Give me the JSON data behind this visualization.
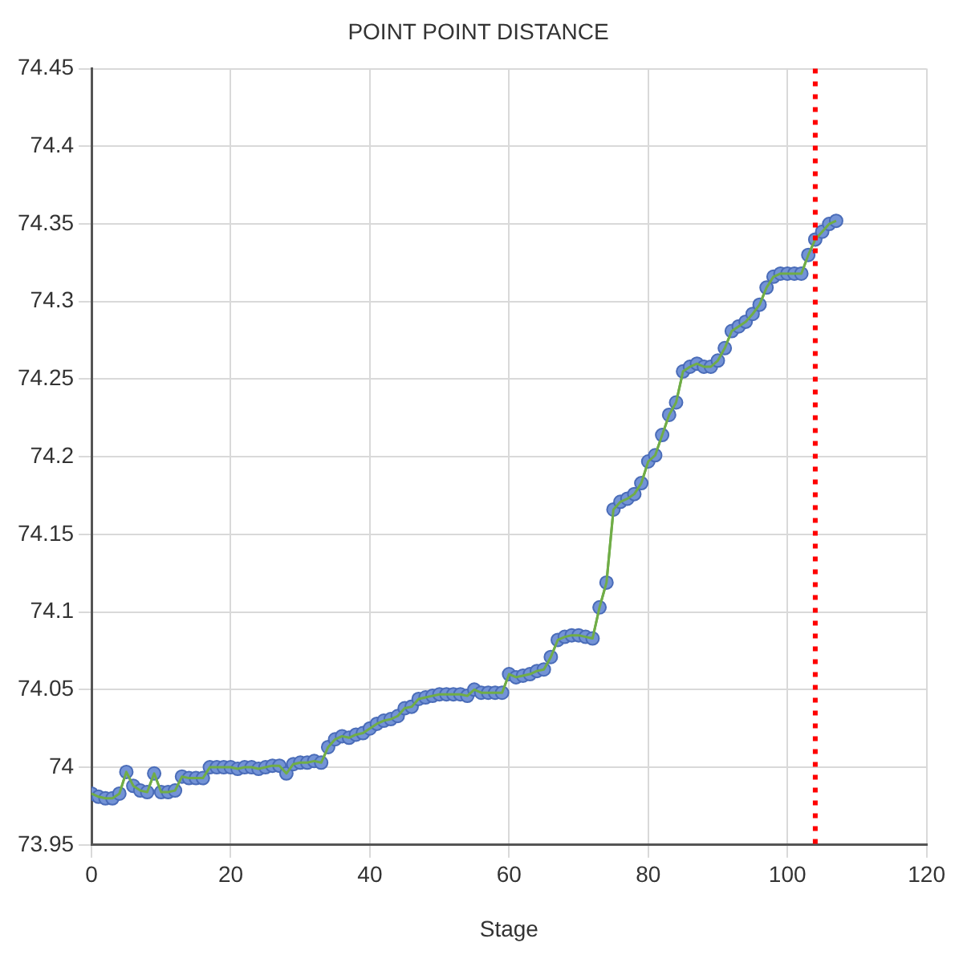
{
  "chart_data": {
    "type": "line",
    "title": "POINT POINT DISTANCE",
    "xlabel": "Stage",
    "x": [
      0,
      1,
      2,
      3,
      4,
      5,
      6,
      7,
      8,
      9,
      10,
      11,
      12,
      13,
      14,
      15,
      16,
      17,
      18,
      19,
      20,
      21,
      22,
      23,
      24,
      25,
      26,
      27,
      28,
      29,
      30,
      31,
      32,
      33,
      34,
      35,
      36,
      37,
      38,
      39,
      40,
      41,
      42,
      43,
      44,
      45,
      46,
      47,
      48,
      49,
      50,
      51,
      52,
      53,
      54,
      55,
      56,
      57,
      58,
      59,
      60,
      61,
      62,
      63,
      64,
      65,
      66,
      67,
      68,
      69,
      70,
      71,
      72,
      73,
      74,
      75,
      76,
      77,
      78,
      79,
      80,
      81,
      82,
      83,
      84,
      85,
      86,
      87,
      88,
      89,
      90,
      91,
      92,
      93,
      94,
      95,
      96,
      97,
      98,
      99,
      100,
      101,
      102,
      103,
      104,
      105,
      106,
      107
    ],
    "series": [
      {
        "color": "#70ad47",
        "values": [
          73.983,
          73.981,
          73.98,
          73.98,
          73.983,
          73.997,
          73.988,
          73.985,
          73.984,
          73.996,
          73.984,
          73.984,
          73.985,
          73.994,
          73.993,
          73.993,
          73.993,
          74.0,
          74.0,
          74.0,
          74.0,
          73.999,
          74.0,
          74.0,
          73.999,
          74.0,
          74.001,
          74.001,
          73.996,
          74.002,
          74.003,
          74.003,
          74.004,
          74.003,
          74.013,
          74.018,
          74.02,
          74.019,
          74.021,
          74.022,
          74.025,
          74.028,
          74.03,
          74.031,
          74.033,
          74.038,
          74.039,
          74.044,
          74.045,
          74.046,
          74.047,
          74.047,
          74.047,
          74.047,
          74.046,
          74.05,
          74.048,
          74.048,
          74.048,
          74.048,
          74.06,
          74.058,
          74.059,
          74.06,
          74.062,
          74.063,
          74.071,
          74.082,
          74.084,
          74.085,
          74.085,
          74.084,
          74.083,
          74.103,
          74.119,
          74.166,
          74.171,
          74.173,
          74.176,
          74.183,
          74.197,
          74.201,
          74.214,
          74.227,
          74.235,
          74.255,
          74.258,
          74.26,
          74.258,
          74.258,
          74.262,
          74.27,
          74.281,
          74.284,
          74.287,
          74.292,
          74.298,
          74.309,
          74.316,
          74.318,
          74.318,
          74.318,
          74.318,
          74.33,
          74.34,
          74.345,
          74.35,
          74.352
        ]
      }
    ],
    "xlim": [
      0,
      120
    ],
    "xticks": [
      0,
      20,
      40,
      60,
      80,
      100,
      120
    ],
    "ylim": [
      73.95,
      74.45
    ],
    "yticks": [
      73.95,
      74,
      74.05,
      74.1,
      74.15,
      74.2,
      74.25,
      74.3,
      74.35,
      74.4,
      74.45
    ],
    "ref_lines": [
      {
        "axis": "x",
        "value": 104,
        "color": "#ff0000",
        "line_style": "dotted"
      }
    ],
    "grid": true,
    "marker": "circle",
    "line_style": "solid"
  }
}
